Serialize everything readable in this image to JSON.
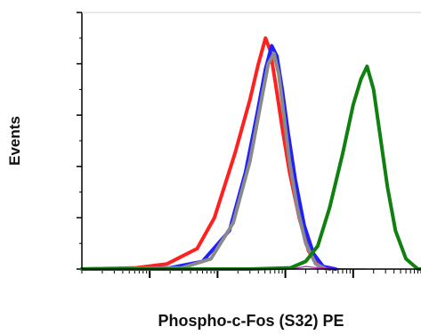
{
  "chart_data": {
    "type": "line",
    "title": "",
    "xlabel": "Phospho-c-Fos (S32) PE",
    "ylabel": "Events",
    "x_scale": "log",
    "xlim": [
      10,
      1000000
    ],
    "ylim": [
      0,
      100
    ],
    "grid": false,
    "legend": "none",
    "x_major_ticks": [
      100,
      1000,
      10000,
      100000
    ],
    "series": [
      {
        "color": "#ff2020",
        "x": [
          10,
          63,
          180,
          500,
          900,
          1800,
          3000,
          4000,
          5100,
          6000,
          7200,
          9000,
          11500,
          16000,
          22000,
          30000,
          45000
        ],
        "y": [
          0,
          0.5,
          2,
          8,
          20,
          45,
          66,
          80,
          90,
          85,
          72,
          55,
          38,
          20,
          7,
          1.5,
          0
        ]
      },
      {
        "color": "#2020ff",
        "x": [
          10,
          200,
          600,
          1500,
          2600,
          3800,
          5100,
          6300,
          7500,
          9000,
          11000,
          14000,
          19000,
          26000,
          36000,
          55000
        ],
        "y": [
          0,
          0.5,
          3,
          15,
          38,
          60,
          78,
          87,
          83,
          70,
          53,
          35,
          17,
          6,
          1,
          0
        ]
      },
      {
        "color": "#8a8a8a",
        "x": [
          10,
          300,
          800,
          1700,
          3000,
          4300,
          5600,
          6800,
          8000,
          9500,
          11500,
          15000,
          20000,
          28000,
          40000
        ],
        "y": [
          0,
          0.5,
          4,
          18,
          42,
          64,
          80,
          84,
          76,
          60,
          42,
          24,
          10,
          2,
          0
        ]
      },
      {
        "color": "#c020c0",
        "x": [
          12000,
          20000,
          30000,
          50000,
          90000,
          150000
        ],
        "y": [
          0,
          1,
          0.5,
          0.2,
          0,
          0
        ]
      },
      {
        "color": "#108010",
        "x": [
          10,
          3000,
          12000,
          20000,
          30000,
          45000,
          70000,
          100000,
          130000,
          160000,
          200000,
          250000,
          320000,
          420000,
          600000,
          900000,
          1000000
        ],
        "y": [
          0,
          0,
          0.5,
          3,
          9,
          24,
          45,
          64,
          74,
          79,
          70,
          52,
          32,
          15,
          4,
          0,
          0
        ]
      }
    ]
  }
}
